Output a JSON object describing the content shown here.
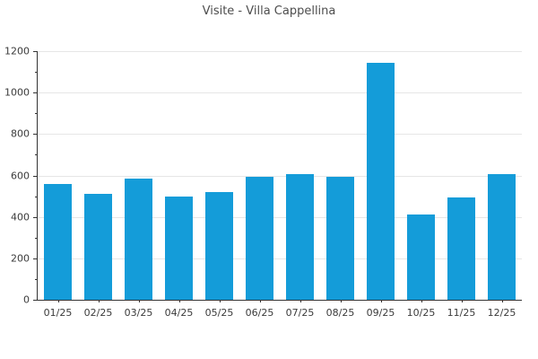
{
  "chart_data": {
    "type": "bar",
    "title": "Visite - Villa Cappellina",
    "categories": [
      "01/25",
      "02/25",
      "03/25",
      "04/25",
      "05/25",
      "06/25",
      "07/25",
      "08/25",
      "09/25",
      "10/25",
      "11/25",
      "12/25"
    ],
    "values": [
      560,
      510,
      585,
      500,
      520,
      595,
      605,
      595,
      1145,
      410,
      495,
      605
    ],
    "xlabel": "",
    "ylabel": "",
    "ylim": [
      0,
      1200
    ],
    "yticks": [
      0,
      200,
      400,
      600,
      800,
      1000,
      1200
    ],
    "minor_yticks": [
      100,
      300,
      500,
      700,
      900,
      1100
    ],
    "grid": true,
    "legend": false,
    "colors": {
      "bar": "#149CD9",
      "grid": "#e6e6e6",
      "axis": "#333333",
      "tick": "#333333",
      "tick_label": "#3b3b3b",
      "title": "#4d4d4d",
      "background": "#ffffff"
    }
  }
}
